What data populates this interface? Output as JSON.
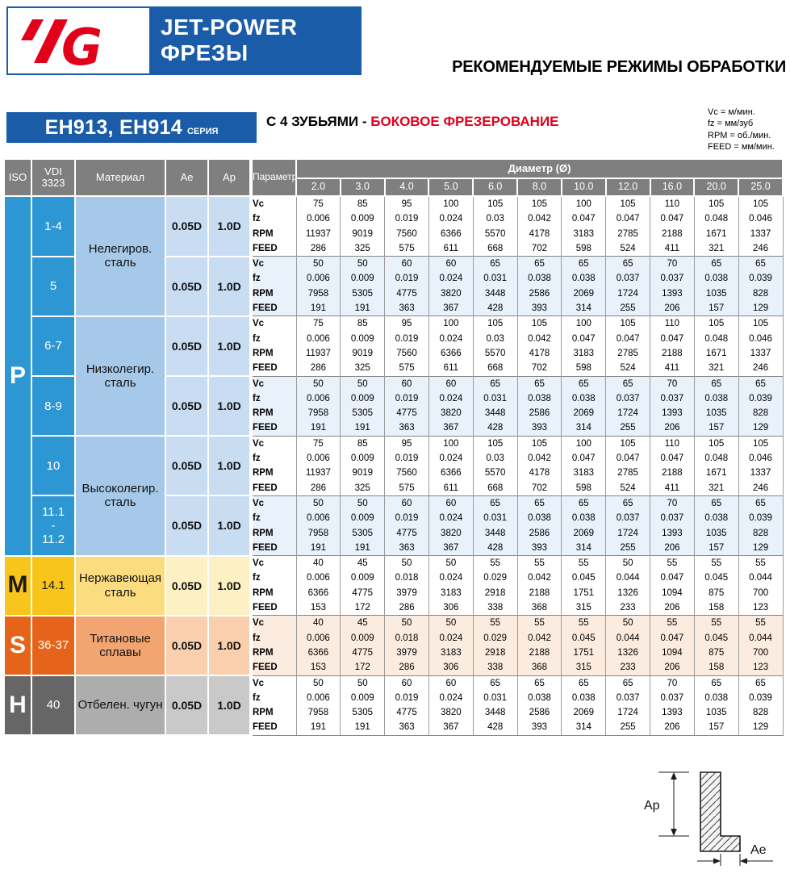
{
  "brand": {
    "logo": "YG",
    "product_line1": "JET-POWER",
    "product_line2": "ФРЕЗЫ",
    "page_title": "РЕКОМЕНДУЕМЫЕ РЕЖИМЫ ОБРАБОТКИ"
  },
  "series": {
    "name": "EH913, EH914",
    "suffix": "СЕРИЯ",
    "subtitle_prefix": "С 4 ЗУБЬЯМИ - ",
    "subtitle_highlight": "БОКОВОЕ ФРЕЗЕРОВАНИЕ"
  },
  "legend": [
    "Vc = м/мин.",
    "fz = мм/зуб",
    "RPM = об./мин.",
    "FEED = мм/мин."
  ],
  "colors": {
    "brand_blue": "#1a5ca8",
    "accent_red": "#e2001b",
    "header_gray": "#7f7f7f"
  },
  "table": {
    "headers": {
      "iso": "ISO",
      "vdi": "VDI\n3323",
      "material": "Материал",
      "ae": "Ae",
      "ap": "Ap",
      "param": "Параметр",
      "diameter": "Диаметр (Ø)"
    },
    "diameters": [
      "2.0",
      "3.0",
      "4.0",
      "5.0",
      "6.0",
      "8.0",
      "10.0",
      "12.0",
      "16.0",
      "20.0",
      "25.0"
    ],
    "param_labels": [
      "Vc",
      "fz",
      "RPM",
      "FEED"
    ],
    "value_sets": {
      "A": {
        "Vc": [
          75,
          85,
          95,
          100,
          105,
          105,
          100,
          105,
          110,
          105,
          105
        ],
        "fz": [
          "0.006",
          "0.009",
          "0.019",
          "0.024",
          "0.03",
          "0.042",
          "0.047",
          "0.047",
          "0.047",
          "0.048",
          "0.046"
        ],
        "RPM": [
          11937,
          9019,
          7560,
          6366,
          5570,
          4178,
          3183,
          2785,
          2188,
          1671,
          1337
        ],
        "FEED": [
          286,
          325,
          575,
          611,
          668,
          702,
          598,
          524,
          411,
          321,
          246
        ]
      },
      "B": {
        "Vc": [
          50,
          50,
          60,
          60,
          65,
          65,
          65,
          65,
          70,
          65,
          65
        ],
        "fz": [
          "0.006",
          "0.009",
          "0.019",
          "0.024",
          "0.031",
          "0.038",
          "0.038",
          "0.037",
          "0.037",
          "0.038",
          "0.039"
        ],
        "RPM": [
          7958,
          5305,
          4775,
          3820,
          3448,
          2586,
          2069,
          1724,
          1393,
          1035,
          828
        ],
        "FEED": [
          191,
          191,
          363,
          367,
          428,
          393,
          314,
          255,
          206,
          157,
          129
        ]
      },
      "C": {
        "Vc": [
          40,
          45,
          50,
          50,
          55,
          55,
          55,
          50,
          55,
          55,
          55
        ],
        "fz": [
          "0.006",
          "0.009",
          "0.018",
          "0.024",
          "0.029",
          "0.042",
          "0.045",
          "0.044",
          "0.047",
          "0.045",
          "0.044"
        ],
        "RPM": [
          6366,
          4775,
          3979,
          3183,
          2918,
          2188,
          1751,
          1326,
          1094,
          875,
          700
        ],
        "FEED": [
          153,
          172,
          286,
          306,
          338,
          368,
          315,
          233,
          206,
          158,
          123
        ]
      }
    },
    "iso_themes": {
      "P": {
        "iso_bg": "#2d97d3",
        "iso_color": "#ffffff",
        "vdi_color": "#ffffff",
        "material_bg": "#a6c9e9",
        "aeap_bg": "#c8ddf2",
        "tint_bg": "#e9f1fa"
      },
      "M": {
        "iso_bg": "#f8c51d",
        "iso_color": "#1a1a1a",
        "vdi_color": "#1a1a1a",
        "material_bg": "#fbdd7f",
        "aeap_bg": "#fdf0c2",
        "tint_bg": "#ffffff"
      },
      "S": {
        "iso_bg": "#e6641a",
        "iso_color": "#ffffff",
        "vdi_color": "#ffffff",
        "material_bg": "#f3a571",
        "aeap_bg": "#f9cfad",
        "tint_bg": "#fcece0"
      },
      "H": {
        "iso_bg": "#666666",
        "iso_color": "#ffffff",
        "vdi_color": "#ffffff",
        "material_bg": "#adadad",
        "aeap_bg": "#c9c9c9",
        "tint_bg": "#ffffff"
      }
    },
    "blocks": [
      {
        "iso": "P",
        "vdi": "1-4",
        "material": "Нелегиров.\nсталь",
        "ae": "0.05D",
        "ap": "1.0D",
        "set": "A",
        "tint": false
      },
      {
        "iso": "P",
        "vdi": "5",
        "material": "Нелегиров.\nсталь",
        "ae": "0.05D",
        "ap": "1.0D",
        "set": "B",
        "tint": true
      },
      {
        "iso": "P",
        "vdi": "6-7",
        "material": "Низколегир.\nсталь",
        "ae": "0.05D",
        "ap": "1.0D",
        "set": "A",
        "tint": false
      },
      {
        "iso": "P",
        "vdi": "8-9",
        "material": "Низколегир.\nсталь",
        "ae": "0.05D",
        "ap": "1.0D",
        "set": "B",
        "tint": true
      },
      {
        "iso": "P",
        "vdi": "10",
        "material": "Высоколегир.\nсталь",
        "ae": "0.05D",
        "ap": "1.0D",
        "set": "A",
        "tint": false
      },
      {
        "iso": "P",
        "vdi": "11.1\n-\n11.2",
        "material": "Высоколегир.\nсталь",
        "ae": "0.05D",
        "ap": "1.0D",
        "set": "B",
        "tint": true
      },
      {
        "iso": "M",
        "vdi": "14.1",
        "material": "Нержавеющая\nсталь",
        "ae": "0.05D",
        "ap": "1.0D",
        "set": "C",
        "tint": false
      },
      {
        "iso": "S",
        "vdi": "36-37",
        "material": "Титановые\nсплавы",
        "ae": "0.05D",
        "ap": "1.0D",
        "set": "C",
        "tint": true
      },
      {
        "iso": "H",
        "vdi": "40",
        "material": "Отбелен. чугун",
        "ae": "0.05D",
        "ap": "1.0D",
        "set": "B",
        "tint": false
      }
    ]
  },
  "diagram": {
    "ap_label": "Ap",
    "ae_label": "Ae"
  }
}
